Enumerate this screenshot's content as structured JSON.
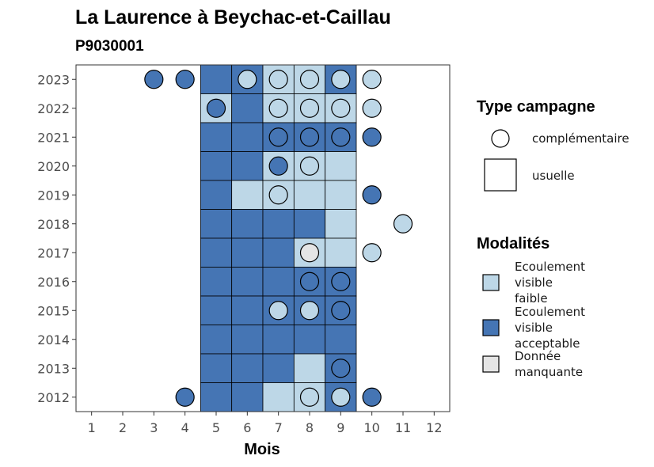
{
  "colors": {
    "faible": "#BDD7E7",
    "acceptable": "#4575B4",
    "manquante": "#E5E5E5",
    "outline": "#000000"
  },
  "chart_data": {
    "type": "heatmap",
    "title": "La Laurence à Beychac-et-Caillau",
    "subtitle": "P9030001",
    "xlabel": "Mois",
    "ylabel": "",
    "x_ticks": [
      "1",
      "2",
      "3",
      "4",
      "5",
      "6",
      "7",
      "8",
      "9",
      "10",
      "11",
      "12"
    ],
    "y_ticks": [
      "2012",
      "2013",
      "2014",
      "2015",
      "2016",
      "2017",
      "2018",
      "2019",
      "2020",
      "2021",
      "2022",
      "2023"
    ],
    "xlim": [
      0.5,
      12.5
    ],
    "ylim": [
      2011.5,
      2023.5
    ],
    "grid": false,
    "legend_position": "right",
    "legend_type": {
      "title": "Type campagne",
      "entries": [
        {
          "key": "complementaire",
          "label": "complémentaire",
          "shape": "circle"
        },
        {
          "key": "usuelle",
          "label": "usuelle",
          "shape": "square"
        }
      ]
    },
    "legend_modalite": {
      "title": "Modalités",
      "entries": [
        {
          "key": "faible",
          "lines": [
            "Ecoulement",
            "visible",
            "faible"
          ]
        },
        {
          "key": "acceptable",
          "lines": [
            "Ecoulement",
            "visible",
            "acceptable"
          ]
        },
        {
          "key": "manquante",
          "lines": [
            "Donnée",
            "manquante"
          ]
        }
      ]
    },
    "observations": [
      {
        "year": 2023,
        "month": 5,
        "type": "usuelle",
        "modalite": "acceptable"
      },
      {
        "year": 2023,
        "month": 6,
        "type": "usuelle",
        "modalite": "acceptable"
      },
      {
        "year": 2023,
        "month": 7,
        "type": "usuelle",
        "modalite": "faible"
      },
      {
        "year": 2023,
        "month": 8,
        "type": "usuelle",
        "modalite": "faible"
      },
      {
        "year": 2023,
        "month": 9,
        "type": "usuelle",
        "modalite": "acceptable"
      },
      {
        "year": 2022,
        "month": 5,
        "type": "usuelle",
        "modalite": "faible"
      },
      {
        "year": 2022,
        "month": 6,
        "type": "usuelle",
        "modalite": "acceptable"
      },
      {
        "year": 2022,
        "month": 7,
        "type": "usuelle",
        "modalite": "faible"
      },
      {
        "year": 2022,
        "month": 8,
        "type": "usuelle",
        "modalite": "faible"
      },
      {
        "year": 2022,
        "month": 9,
        "type": "usuelle",
        "modalite": "faible"
      },
      {
        "year": 2021,
        "month": 5,
        "type": "usuelle",
        "modalite": "acceptable"
      },
      {
        "year": 2021,
        "month": 6,
        "type": "usuelle",
        "modalite": "acceptable"
      },
      {
        "year": 2021,
        "month": 7,
        "type": "usuelle",
        "modalite": "acceptable"
      },
      {
        "year": 2021,
        "month": 8,
        "type": "usuelle",
        "modalite": "acceptable"
      },
      {
        "year": 2021,
        "month": 9,
        "type": "usuelle",
        "modalite": "acceptable"
      },
      {
        "year": 2020,
        "month": 5,
        "type": "usuelle",
        "modalite": "acceptable"
      },
      {
        "year": 2020,
        "month": 6,
        "type": "usuelle",
        "modalite": "acceptable"
      },
      {
        "year": 2020,
        "month": 7,
        "type": "usuelle",
        "modalite": "faible"
      },
      {
        "year": 2020,
        "month": 8,
        "type": "usuelle",
        "modalite": "faible"
      },
      {
        "year": 2020,
        "month": 9,
        "type": "usuelle",
        "modalite": "faible"
      },
      {
        "year": 2019,
        "month": 5,
        "type": "usuelle",
        "modalite": "acceptable"
      },
      {
        "year": 2019,
        "month": 6,
        "type": "usuelle",
        "modalite": "faible"
      },
      {
        "year": 2019,
        "month": 7,
        "type": "usuelle",
        "modalite": "faible"
      },
      {
        "year": 2019,
        "month": 8,
        "type": "usuelle",
        "modalite": "faible"
      },
      {
        "year": 2019,
        "month": 9,
        "type": "usuelle",
        "modalite": "faible"
      },
      {
        "year": 2018,
        "month": 5,
        "type": "usuelle",
        "modalite": "acceptable"
      },
      {
        "year": 2018,
        "month": 6,
        "type": "usuelle",
        "modalite": "acceptable"
      },
      {
        "year": 2018,
        "month": 7,
        "type": "usuelle",
        "modalite": "acceptable"
      },
      {
        "year": 2018,
        "month": 8,
        "type": "usuelle",
        "modalite": "acceptable"
      },
      {
        "year": 2018,
        "month": 9,
        "type": "usuelle",
        "modalite": "faible"
      },
      {
        "year": 2017,
        "month": 5,
        "type": "usuelle",
        "modalite": "acceptable"
      },
      {
        "year": 2017,
        "month": 6,
        "type": "usuelle",
        "modalite": "acceptable"
      },
      {
        "year": 2017,
        "month": 7,
        "type": "usuelle",
        "modalite": "acceptable"
      },
      {
        "year": 2017,
        "month": 8,
        "type": "usuelle",
        "modalite": "faible"
      },
      {
        "year": 2017,
        "month": 9,
        "type": "usuelle",
        "modalite": "faible"
      },
      {
        "year": 2016,
        "month": 5,
        "type": "usuelle",
        "modalite": "acceptable"
      },
      {
        "year": 2016,
        "month": 6,
        "type": "usuelle",
        "modalite": "acceptable"
      },
      {
        "year": 2016,
        "month": 7,
        "type": "usuelle",
        "modalite": "acceptable"
      },
      {
        "year": 2016,
        "month": 8,
        "type": "usuelle",
        "modalite": "acceptable"
      },
      {
        "year": 2016,
        "month": 9,
        "type": "usuelle",
        "modalite": "acceptable"
      },
      {
        "year": 2015,
        "month": 5,
        "type": "usuelle",
        "modalite": "acceptable"
      },
      {
        "year": 2015,
        "month": 6,
        "type": "usuelle",
        "modalite": "acceptable"
      },
      {
        "year": 2015,
        "month": 7,
        "type": "usuelle",
        "modalite": "acceptable"
      },
      {
        "year": 2015,
        "month": 8,
        "type": "usuelle",
        "modalite": "acceptable"
      },
      {
        "year": 2015,
        "month": 9,
        "type": "usuelle",
        "modalite": "acceptable"
      },
      {
        "year": 2014,
        "month": 5,
        "type": "usuelle",
        "modalite": "acceptable"
      },
      {
        "year": 2014,
        "month": 6,
        "type": "usuelle",
        "modalite": "acceptable"
      },
      {
        "year": 2014,
        "month": 7,
        "type": "usuelle",
        "modalite": "acceptable"
      },
      {
        "year": 2014,
        "month": 8,
        "type": "usuelle",
        "modalite": "acceptable"
      },
      {
        "year": 2014,
        "month": 9,
        "type": "usuelle",
        "modalite": "acceptable"
      },
      {
        "year": 2013,
        "month": 5,
        "type": "usuelle",
        "modalite": "acceptable"
      },
      {
        "year": 2013,
        "month": 6,
        "type": "usuelle",
        "modalite": "acceptable"
      },
      {
        "year": 2013,
        "month": 7,
        "type": "usuelle",
        "modalite": "acceptable"
      },
      {
        "year": 2013,
        "month": 8,
        "type": "usuelle",
        "modalite": "faible"
      },
      {
        "year": 2013,
        "month": 9,
        "type": "usuelle",
        "modalite": "acceptable"
      },
      {
        "year": 2012,
        "month": 5,
        "type": "usuelle",
        "modalite": "acceptable"
      },
      {
        "year": 2012,
        "month": 6,
        "type": "usuelle",
        "modalite": "acceptable"
      },
      {
        "year": 2012,
        "month": 7,
        "type": "usuelle",
        "modalite": "faible"
      },
      {
        "year": 2012,
        "month": 8,
        "type": "usuelle",
        "modalite": "faible"
      },
      {
        "year": 2012,
        "month": 9,
        "type": "usuelle",
        "modalite": "acceptable"
      },
      {
        "year": 2023,
        "month": 3,
        "type": "complementaire",
        "modalite": "acceptable"
      },
      {
        "year": 2023,
        "month": 4,
        "type": "complementaire",
        "modalite": "acceptable"
      },
      {
        "year": 2023,
        "month": 6,
        "type": "complementaire",
        "modalite": "faible"
      },
      {
        "year": 2023,
        "month": 7,
        "type": "complementaire",
        "modalite": "faible"
      },
      {
        "year": 2023,
        "month": 8,
        "type": "complementaire",
        "modalite": "faible"
      },
      {
        "year": 2023,
        "month": 9,
        "type": "complementaire",
        "modalite": "faible"
      },
      {
        "year": 2023,
        "month": 10,
        "type": "complementaire",
        "modalite": "faible"
      },
      {
        "year": 2022,
        "month": 5,
        "type": "complementaire",
        "modalite": "acceptable"
      },
      {
        "year": 2022,
        "month": 7,
        "type": "complementaire",
        "modalite": "faible"
      },
      {
        "year": 2022,
        "month": 8,
        "type": "complementaire",
        "modalite": "faible"
      },
      {
        "year": 2022,
        "month": 9,
        "type": "complementaire",
        "modalite": "faible"
      },
      {
        "year": 2022,
        "month": 10,
        "type": "complementaire",
        "modalite": "faible"
      },
      {
        "year": 2021,
        "month": 7,
        "type": "complementaire",
        "modalite": "acceptable"
      },
      {
        "year": 2021,
        "month": 8,
        "type": "complementaire",
        "modalite": "acceptable"
      },
      {
        "year": 2021,
        "month": 9,
        "type": "complementaire",
        "modalite": "acceptable"
      },
      {
        "year": 2021,
        "month": 10,
        "type": "complementaire",
        "modalite": "acceptable"
      },
      {
        "year": 2020,
        "month": 7,
        "type": "complementaire",
        "modalite": "acceptable"
      },
      {
        "year": 2020,
        "month": 8,
        "type": "complementaire",
        "modalite": "faible"
      },
      {
        "year": 2019,
        "month": 7,
        "type": "complementaire",
        "modalite": "faible"
      },
      {
        "year": 2019,
        "month": 10,
        "type": "complementaire",
        "modalite": "acceptable"
      },
      {
        "year": 2018,
        "month": 11,
        "type": "complementaire",
        "modalite": "faible"
      },
      {
        "year": 2017,
        "month": 8,
        "type": "complementaire",
        "modalite": "manquante"
      },
      {
        "year": 2017,
        "month": 10,
        "type": "complementaire",
        "modalite": "faible"
      },
      {
        "year": 2016,
        "month": 8,
        "type": "complementaire",
        "modalite": "acceptable"
      },
      {
        "year": 2016,
        "month": 9,
        "type": "complementaire",
        "modalite": "acceptable"
      },
      {
        "year": 2015,
        "month": 7,
        "type": "complementaire",
        "modalite": "faible"
      },
      {
        "year": 2015,
        "month": 8,
        "type": "complementaire",
        "modalite": "faible"
      },
      {
        "year": 2015,
        "month": 9,
        "type": "complementaire",
        "modalite": "acceptable"
      },
      {
        "year": 2013,
        "month": 9,
        "type": "complementaire",
        "modalite": "acceptable"
      },
      {
        "year": 2012,
        "month": 4,
        "type": "complementaire",
        "modalite": "acceptable"
      },
      {
        "year": 2012,
        "month": 8,
        "type": "complementaire",
        "modalite": "faible"
      },
      {
        "year": 2012,
        "month": 9,
        "type": "complementaire",
        "modalite": "faible"
      },
      {
        "year": 2012,
        "month": 10,
        "type": "complementaire",
        "modalite": "acceptable"
      }
    ]
  }
}
